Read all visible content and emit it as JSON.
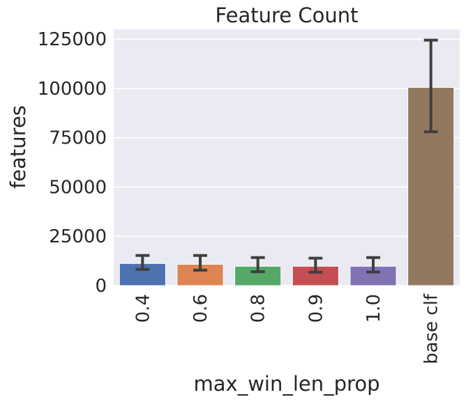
{
  "chart_data": {
    "type": "bar",
    "title": "Feature Count",
    "xlabel": "max_win_len_prop",
    "ylabel": "features",
    "categories": [
      "0.4",
      "0.6",
      "0.8",
      "0.9",
      "1.0",
      "base clf"
    ],
    "values": [
      11200,
      10800,
      9800,
      9800,
      9800,
      100500
    ],
    "error_low": [
      8200,
      7800,
      7000,
      6800,
      6900,
      78000
    ],
    "error_high": [
      15300,
      15300,
      14200,
      13900,
      14200,
      124500
    ],
    "ylim": [
      0,
      130000
    ],
    "yticks": [
      0,
      25000,
      50000,
      75000,
      100000,
      125000
    ],
    "ytick_labels": [
      "0",
      "25000",
      "50000",
      "75000",
      "100000",
      "125000"
    ],
    "grid": true,
    "colors": [
      "#4c72b0",
      "#dd8452",
      "#55a868",
      "#c44e52",
      "#8172b3",
      "#937860"
    ],
    "background_color": "#eaeaf2",
    "error_bar_color": "#3f3f3f"
  }
}
